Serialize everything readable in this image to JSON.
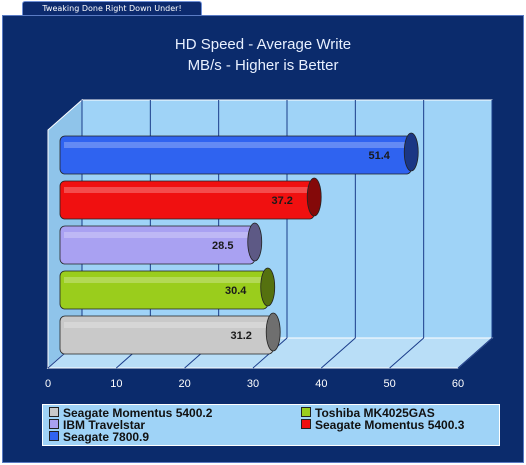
{
  "banner": {
    "text": "Tweaking Done Right Down Under!"
  },
  "chart_data": {
    "type": "bar",
    "orientation": "horizontal",
    "title": [
      "HD Speed - Average Write",
      "MB/s - Higher is Better"
    ],
    "categories": [
      "Seagate 7800.9",
      "Seagate Momentus 5400.3",
      "IBM Travelstar",
      "Toshiba MK4025GAS",
      "Seagate Momentus 5400.2"
    ],
    "values": [
      51.4,
      37.2,
      28.5,
      30.4,
      31.2
    ],
    "value_labels": [
      "51.4",
      "37.2",
      "28.5",
      "30.4",
      "31.2"
    ],
    "colors": [
      "#2f63f0",
      "#f01010",
      "#a9a1f2",
      "#9acd1c",
      "#c9c9c9"
    ],
    "xlim": [
      0,
      60
    ],
    "x_ticks": [
      "0",
      "10",
      "20",
      "30",
      "40",
      "50",
      "60"
    ],
    "grid": true,
    "legend_position": "bottom"
  },
  "legend": {
    "items": [
      {
        "label": "Seagate Momentus 5400.2",
        "color": "#c9c9c9"
      },
      {
        "label": "Toshiba MK4025GAS",
        "color": "#9acd1c"
      },
      {
        "label": "IBM Travelstar",
        "color": "#a9a1f2"
      },
      {
        "label": "Seagate Momentus 5400.3",
        "color": "#f01010"
      },
      {
        "label": "Seagate 7800.9",
        "color": "#2f63f0"
      }
    ]
  },
  "colors": {
    "panel": "#0b2b6c",
    "plot_back": "#9fd3f7",
    "plot_floor": "#ffffff"
  }
}
